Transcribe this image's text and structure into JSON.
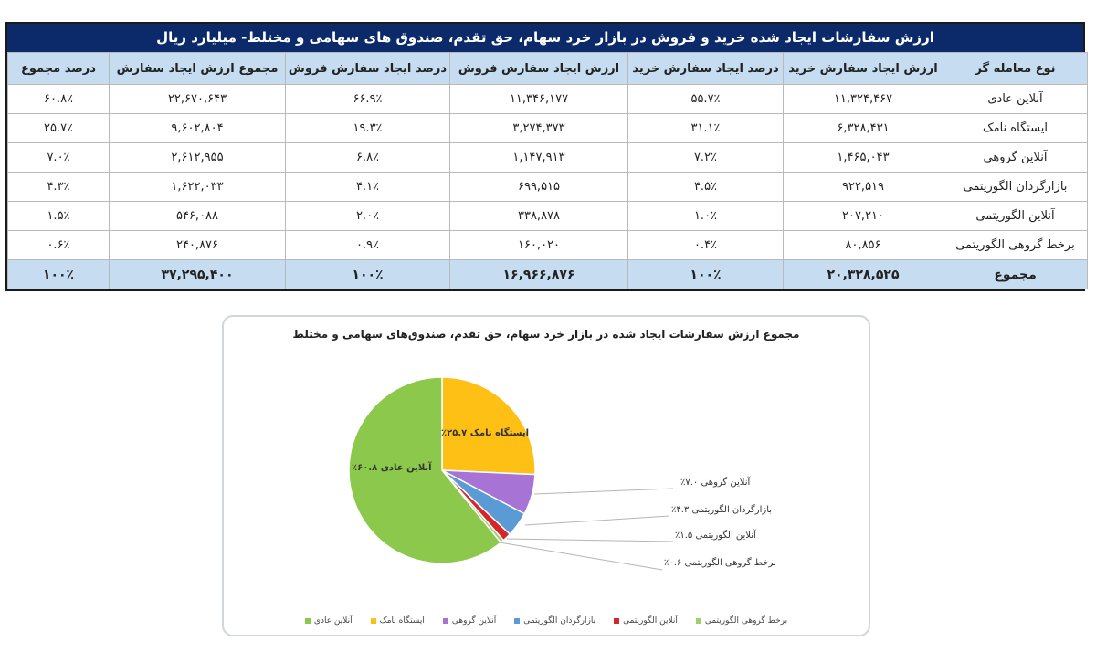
{
  "table": {
    "title": "ارزش سفارشات ایجاد شده خرید و فروش در بازار خرد سهام، حق تقدم، صندوق های سهامی و مختلط- میلیارد ریال",
    "headers": [
      "نوع معامله گر",
      "ارزش ایجاد سفارش خرید",
      "درصد ایجاد سفارش خرید",
      "ارزش ایجاد سفارش فروش",
      "درصد ایجاد سفارش فروش",
      "مجموع ارزش ایجاد سفارش",
      "درصد مجموع"
    ],
    "rows": [
      [
        "آنلاین عادی",
        "۱۱,۳۲۴,۴۶۷",
        "۵۵.۷٪",
        "۱۱,۳۴۶,۱۷۷",
        "۶۶.۹٪",
        "۲۲,۶۷۰,۶۴۳",
        "۶۰.۸٪"
      ],
      [
        "ایستگاه نامک",
        "۶,۳۲۸,۴۳۱",
        "۳۱.۱٪",
        "۳,۲۷۴,۳۷۳",
        "۱۹.۳٪",
        "۹,۶۰۲,۸۰۴",
        "۲۵.۷٪"
      ],
      [
        "آنلاین گروهی",
        "۱,۴۶۵,۰۴۳",
        "۷.۲٪",
        "۱,۱۴۷,۹۱۳",
        "۶.۸٪",
        "۲,۶۱۲,۹۵۵",
        "۷.۰٪"
      ],
      [
        "بازارگردان الگوریتمی",
        "۹۲۲,۵۱۹",
        "۴.۵٪",
        "۶۹۹,۵۱۵",
        "۴.۱٪",
        "۱,۶۲۲,۰۳۳",
        "۴.۳٪"
      ],
      [
        "آنلاین الگوریتمی",
        "۲۰۷,۲۱۰",
        "۱.۰٪",
        "۳۳۸,۸۷۸",
        "۲.۰٪",
        "۵۴۶,۰۸۸",
        "۱.۵٪"
      ],
      [
        "برخط گروهی الگوریتمی",
        "۸۰,۸۵۶",
        "۰.۴٪",
        "۱۶۰,۰۲۰",
        "۰.۹٪",
        "۲۴۰,۸۷۶",
        "۰.۶٪"
      ]
    ],
    "total": [
      "مجموع",
      "۲۰,۳۲۸,۵۲۵",
      "۱۰۰٪",
      "۱۶,۹۶۶,۸۷۶",
      "۱۰۰٪",
      "۳۷,۲۹۵,۴۰۰",
      "۱۰۰٪"
    ],
    "colors": {
      "title_bg": "#0c2a6a",
      "header_bg": "#c6dcf1",
      "total_bg": "#c6dcf1"
    }
  },
  "chart": {
    "title": "مجموع ارزش سفارشات ایجاد شده در بازار خرد سهام، حق تقدم، صندوق‌های سهامی و مختلط",
    "inside_labels": {
      "namak": "ایستگاه نامک ۲۵.۷٪",
      "adi": "آنلاین عادی ۶۰.۸٪"
    },
    "callouts": {
      "gorouhi": "آنلاین گروهی ۷.۰٪",
      "bazargardan": "بازارگردان الگوریتمی ۴.۳٪",
      "online_algo": "آنلاین الگوریتمی ۱.۵٪",
      "barkhat": "برخط گروهی الگوریتمی ۰.۶٪"
    },
    "legend": [
      {
        "label": "برخط گروهی الگوریتمی",
        "color": "#9bd06b"
      },
      {
        "label": "آنلاین الگوریتمی",
        "color": "#d4262b"
      },
      {
        "label": "بازارگردان الگوریتمی",
        "color": "#5b9bd5"
      },
      {
        "label": "آنلاین گروهی",
        "color": "#a774d6"
      },
      {
        "label": "ایستگاه نامک",
        "color": "#ffc016"
      },
      {
        "label": "آنلاین عادی",
        "color": "#8cc84b"
      }
    ]
  },
  "chart_data": {
    "type": "pie",
    "title": "مجموع ارزش سفارشات ایجاد شده در بازار خرد سهام، حق تقدم، صندوق‌های سهامی و مختلط",
    "categories": [
      "ایستگاه نامک",
      "آنلاین گروهی",
      "بازارگردان الگوریتمی",
      "آنلاین الگوریتمی",
      "برخط گروهی الگوریتمی",
      "آنلاین عادی"
    ],
    "values": [
      25.7,
      7.0,
      4.3,
      1.5,
      0.6,
      60.8
    ],
    "unit": "%",
    "colors": [
      "#ffc016",
      "#a774d6",
      "#5b9bd5",
      "#d4262b",
      "#9bd06b",
      "#8cc84b"
    ],
    "legend_position": "bottom",
    "start_angle": "12 o'clock, clockwise"
  }
}
